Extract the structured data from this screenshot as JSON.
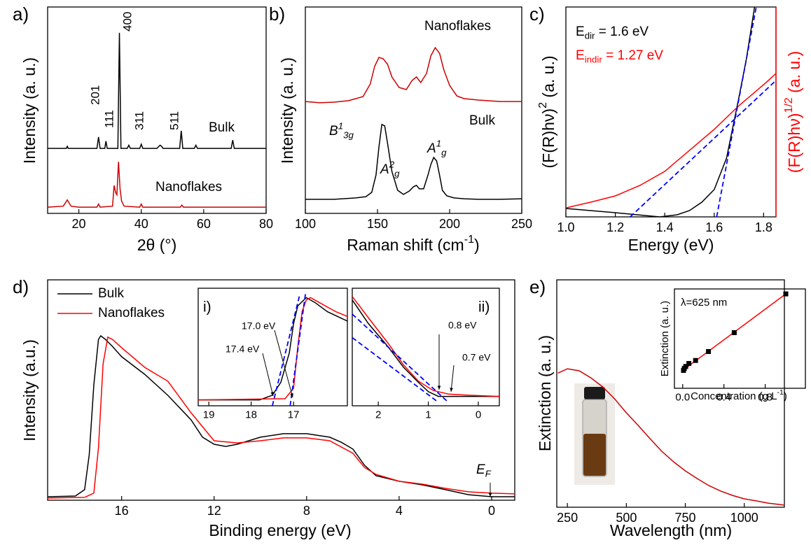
{
  "chart_data": [
    {
      "type": "line",
      "panel": "a)",
      "xlabel": "2θ (°)",
      "ylabel": "Intensity (a. u.)",
      "xlim": [
        10,
        80
      ],
      "ylim": [
        0,
        1
      ],
      "xticks": [
        20,
        40,
        60,
        80
      ],
      "series": [
        {
          "color": "#000000",
          "style": "line",
          "x": [
            10,
            16,
            16.3,
            16.6,
            20,
            25.8,
            26.3,
            26.8,
            28.3,
            28.7,
            29.1,
            32.5,
            33,
            33.5,
            35.5,
            36,
            36.5,
            39.5,
            40,
            40.5,
            45,
            46,
            46.5,
            47,
            52.3,
            52.8,
            53.3,
            57,
            57.5,
            58,
            68.8,
            69.3,
            69.8,
            80
          ],
          "values": [
            0.315,
            0.315,
            0.325,
            0.315,
            0.315,
            0.315,
            0.37,
            0.315,
            0.315,
            0.35,
            0.315,
            0.315,
            0.875,
            0.315,
            0.315,
            0.33,
            0.315,
            0.315,
            0.335,
            0.315,
            0.315,
            0.33,
            0.325,
            0.315,
            0.315,
            0.4,
            0.315,
            0.315,
            0.33,
            0.315,
            0.315,
            0.355,
            0.315,
            0.315
          ]
        },
        {
          "color": "#cc0000",
          "style": "line",
          "x": [
            10,
            15,
            16.3,
            17.5,
            20,
            25.8,
            26.3,
            26.8,
            30.8,
            31.3,
            31.8,
            32.2,
            32.7,
            33.2,
            33.7,
            34.5,
            39.5,
            40,
            40.5,
            45,
            52.5,
            53,
            53.5,
            80
          ],
          "values": [
            0.03,
            0.035,
            0.065,
            0.035,
            0.03,
            0.03,
            0.045,
            0.03,
            0.035,
            0.135,
            0.1,
            0.09,
            0.25,
            0.12,
            0.06,
            0.035,
            0.03,
            0.045,
            0.03,
            0.03,
            0.03,
            0.04,
            0.03,
            0.03
          ]
        }
      ],
      "annotations": [
        {
          "text": "201"
        },
        {
          "text": "111"
        },
        {
          "text": "400"
        },
        {
          "text": "311"
        },
        {
          "text": "511"
        },
        {
          "text": "Bulk"
        },
        {
          "text": "Nanoflakes",
          "color": "#cc0000"
        }
      ]
    },
    {
      "type": "line",
      "panel": "b)",
      "xlabel": [
        {
          "text": "Raman shift (cm"
        },
        {
          "text": "-1",
          "sup": true
        },
        {
          "text": ")"
        }
      ],
      "ylabel": "Intensity (a. u.)",
      "xlim": [
        100,
        250
      ],
      "ylim": [
        0,
        1
      ],
      "xticks": [
        100,
        150,
        200,
        250
      ],
      "series": [
        {
          "color": "#cc0000",
          "style": "line",
          "x": [
            100,
            110,
            120,
            130,
            140,
            145,
            148,
            151,
            154,
            157,
            160,
            165,
            170,
            174,
            177,
            180,
            184,
            187,
            190,
            193,
            196,
            200,
            205,
            210,
            220,
            235,
            250
          ],
          "values": [
            0.542,
            0.536,
            0.539,
            0.546,
            0.566,
            0.627,
            0.712,
            0.756,
            0.749,
            0.722,
            0.661,
            0.61,
            0.6,
            0.644,
            0.661,
            0.634,
            0.678,
            0.763,
            0.803,
            0.776,
            0.695,
            0.62,
            0.569,
            0.556,
            0.549,
            0.542,
            0.542
          ]
        },
        {
          "color": "#000000",
          "style": "line",
          "x": [
            100,
            120,
            135,
            142,
            146,
            149,
            151,
            153,
            155,
            157,
            160,
            164,
            168,
            172,
            175,
            177,
            179,
            182,
            185,
            187,
            189,
            191,
            193,
            195,
            198,
            203,
            210,
            220,
            235,
            250
          ],
          "values": [
            0.068,
            0.068,
            0.075,
            0.081,
            0.102,
            0.186,
            0.322,
            0.431,
            0.424,
            0.339,
            0.203,
            0.112,
            0.092,
            0.108,
            0.129,
            0.136,
            0.119,
            0.119,
            0.186,
            0.237,
            0.271,
            0.254,
            0.186,
            0.112,
            0.085,
            0.075,
            0.071,
            0.068,
            0.068,
            0.071
          ]
        }
      ],
      "annotations": [
        {
          "text": "Nanoflakes",
          "color": "#cc0000"
        },
        {
          "text": "Bulk"
        },
        {
          "text": [
            {
              "text": "B"
            },
            {
              "text": "1",
              "sup": true
            },
            {
              "text": "3g",
              "sub": true
            }
          ]
        },
        {
          "text": [
            {
              "text": "A"
            },
            {
              "text": "2",
              "sup": true
            },
            {
              "text": "g",
              "sub": true
            }
          ]
        },
        {
          "text": [
            {
              "text": "A"
            },
            {
              "text": "1",
              "sup": true
            },
            {
              "text": "g",
              "sub": true
            }
          ]
        }
      ]
    },
    {
      "type": "line",
      "panel": "c)",
      "xlabel": "Energy (eV)",
      "ylabel": [
        {
          "text": "(F(R)hν)"
        },
        {
          "text": "2",
          "sup": true
        },
        {
          "text": " (a. u.)"
        }
      ],
      "y2label": [
        {
          "text": "(F(R)hν)"
        },
        {
          "text": "1/2",
          "sup": true
        },
        {
          "text": " (a. u.)"
        }
      ],
      "xlim": [
        1.0,
        1.85
      ],
      "ylim": [
        0,
        1
      ],
      "y2lim": [
        0,
        1
      ],
      "xticks": [
        {
          "value": 1.0,
          "label": "1.0"
        },
        1.2,
        1.4,
        1.6,
        {
          "value": 1.8,
          "label": "1.8"
        }
      ],
      "series": [
        {
          "color": "#000000",
          "style": "line",
          "x": [
            1.0,
            1.2,
            1.38,
            1.45,
            1.5,
            1.55,
            1.6,
            1.65,
            1.7,
            1.73,
            1.75,
            1.77
          ],
          "values": [
            0.04,
            0.02,
            0,
            0.01,
            0.03,
            0.07,
            0.13,
            0.28,
            0.57,
            0.75,
            0.9,
            1.05
          ]
        },
        {
          "color": "#ff0000",
          "style": "line",
          "axis": "y2",
          "x": [
            1.0,
            1.1,
            1.2,
            1.3,
            1.4,
            1.5,
            1.6,
            1.7,
            1.8,
            1.85
          ],
          "values": [
            0.043,
            0.07,
            0.1,
            0.15,
            0.217,
            0.317,
            0.417,
            0.53,
            0.63,
            0.683
          ]
        },
        {
          "color": "#0000ff",
          "style": "dashed",
          "x": [
            1.61,
            1.77
          ],
          "values": [
            0,
            1
          ]
        },
        {
          "color": "#0000ff",
          "style": "dashed",
          "axis": "y2",
          "x": [
            1.26,
            1.85
          ],
          "values": [
            0,
            0.65
          ]
        }
      ],
      "annotations": [
        {
          "text": [
            {
              "text": "E"
            },
            {
              "text": "dir",
              "sub": true
            },
            {
              "text": " = 1.6 eV"
            }
          ]
        },
        {
          "text": [
            {
              "text": "E"
            },
            {
              "text": "indir",
              "sub": true
            },
            {
              "text": " = 1.27 eV"
            }
          ],
          "color": "#ff0000"
        }
      ]
    },
    {
      "type": "line",
      "panel": "d)",
      "xlabel": "Binding energy (eV)",
      "ylabel": "Intensity (a.u.)",
      "xlim": [
        19.2,
        -1
      ],
      "ylim": [
        0,
        1
      ],
      "xticks": [
        16,
        12,
        8,
        4,
        0
      ],
      "legend": "upper left",
      "series": [
        {
          "name": "Bulk",
          "color": "#000000",
          "style": "line",
          "x": [
            19.2,
            18,
            17.6,
            17.4,
            17.2,
            17.0,
            16.9,
            16.7,
            16.4,
            16,
            15,
            14,
            13,
            12.5,
            12,
            11.5,
            11,
            10,
            9,
            8,
            7,
            6.5,
            6,
            5.5,
            5,
            4,
            3,
            2,
            1,
            0,
            -1
          ],
          "values": [
            0.016,
            0.019,
            0.048,
            0.206,
            0.524,
            0.73,
            0.746,
            0.73,
            0.698,
            0.651,
            0.571,
            0.476,
            0.365,
            0.286,
            0.254,
            0.244,
            0.254,
            0.286,
            0.302,
            0.302,
            0.286,
            0.263,
            0.232,
            0.159,
            0.111,
            0.086,
            0.07,
            0.048,
            0.025,
            0.016,
            0.016
          ]
        },
        {
          "name": "Nanoflakes",
          "color": "#ff0000",
          "style": "line",
          "x": [
            19.2,
            17.6,
            17.2,
            17.0,
            16.8,
            16.6,
            16.4,
            16,
            15,
            14,
            13,
            12,
            11,
            10,
            9,
            8,
            7,
            6,
            5.5,
            5,
            4,
            3,
            2,
            1,
            0,
            -1
          ],
          "values": [
            0.01,
            0.013,
            0.032,
            0.238,
            0.619,
            0.74,
            0.73,
            0.692,
            0.603,
            0.54,
            0.397,
            0.27,
            0.26,
            0.27,
            0.283,
            0.283,
            0.27,
            0.213,
            0.149,
            0.117,
            0.086,
            0.073,
            0.054,
            0.038,
            0.032,
            0.029
          ]
        }
      ],
      "annotations": [
        {
          "text": [
            {
              "text": "E"
            },
            {
              "text": "F",
              "sub": true
            }
          ]
        }
      ]
    },
    {
      "type": "line",
      "panel": "i)",
      "xlim": [
        19.25,
        15.73
      ],
      "ylim": [
        0,
        1
      ],
      "xticks": [
        19,
        18,
        17
      ],
      "series": [
        {
          "color": "#000000",
          "style": "line",
          "x": [
            19.25,
            17.8,
            17.5,
            17.3,
            17.1,
            17.0,
            16.9,
            16.7,
            16.5,
            16.2,
            15.73
          ],
          "values": [
            0.05,
            0.05,
            0.09,
            0.2,
            0.45,
            0.7,
            0.85,
            0.92,
            0.88,
            0.8,
            0.72
          ]
        },
        {
          "color": "#ff0000",
          "style": "line",
          "x": [
            19.25,
            17.2,
            17.0,
            16.9,
            16.8,
            16.7,
            16.6,
            16.4,
            16.0,
            15.73
          ],
          "values": [
            0.05,
            0.06,
            0.15,
            0.5,
            0.8,
            0.9,
            0.92,
            0.88,
            0.8,
            0.76
          ]
        },
        {
          "color": "#0000ff",
          "style": "dashed",
          "x": [
            17.5,
            16.85
          ],
          "values": [
            0.0,
            0.95
          ]
        },
        {
          "color": "#0000ff",
          "style": "dashed",
          "x": [
            17.08,
            16.72
          ],
          "values": [
            0.0,
            0.95
          ]
        }
      ],
      "annotations": [
        {
          "text": "17.0 eV",
          "color": "#ff0000"
        },
        {
          "text": "17.4 eV"
        }
      ]
    },
    {
      "type": "line",
      "panel": "ii)",
      "xlim": [
        2.52,
        -0.42
      ],
      "ylim": [
        0,
        1
      ],
      "xticks": [
        2,
        1,
        0
      ],
      "series": [
        {
          "color": "#000000",
          "style": "line",
          "x": [
            2.52,
            2.2,
            1.8,
            1.5,
            1.2,
            1.0,
            0.8,
            0.6,
            -0.42
          ],
          "values": [
            0.9,
            0.7,
            0.5,
            0.33,
            0.2,
            0.12,
            0.08,
            0.08,
            0.08
          ]
        },
        {
          "color": "#ff0000",
          "style": "line",
          "x": [
            2.52,
            2.2,
            1.8,
            1.5,
            1.2,
            0.9,
            0.6,
            0.2,
            -0.42
          ],
          "values": [
            0.93,
            0.75,
            0.53,
            0.35,
            0.21,
            0.13,
            0.1,
            0.09,
            0.08
          ]
        },
        {
          "color": "#0000ff",
          "style": "dashed",
          "x": [
            2.52,
            0.6
          ],
          "values": [
            0.78,
            0.03
          ]
        },
        {
          "color": "#0000ff",
          "style": "dashed",
          "x": [
            2.52,
            0.8
          ],
          "values": [
            0.58,
            0.03
          ]
        }
      ],
      "annotations": [
        {
          "text": "0.8 eV"
        },
        {
          "text": "0.7 eV",
          "color": "#ff0000"
        }
      ]
    },
    {
      "type": "line",
      "panel": "e)",
      "xlabel": "Wavelength (nm)",
      "ylabel": "Extinction (a. u.)",
      "xlim": [
        205,
        1170
      ],
      "ylim": [
        0,
        1
      ],
      "xticks": [
        250,
        500,
        750,
        1000
      ],
      "series": [
        {
          "color": "#cc0000",
          "style": "line",
          "x": [
            210,
            250,
            300,
            350,
            400,
            450,
            500,
            550,
            600,
            650,
            700,
            750,
            800,
            850,
            900,
            950,
            1000,
            1050,
            1100,
            1150,
            1170
          ],
          "values": [
            0.59,
            0.609,
            0.6,
            0.569,
            0.529,
            0.477,
            0.415,
            0.36,
            0.302,
            0.246,
            0.2,
            0.16,
            0.126,
            0.095,
            0.071,
            0.052,
            0.037,
            0.028,
            0.018,
            0.012,
            0.009
          ]
        }
      ]
    },
    {
      "type": "scatter",
      "xlabel": [
        {
          "text": "Concentration (g L"
        },
        {
          "text": "-1",
          "sup": true
        },
        {
          "text": ")"
        }
      ],
      "ylabel": "Extinction (a. u.)",
      "xlim": [
        -0.08,
        1.19
      ],
      "ylim": [
        0,
        1
      ],
      "xticks": [
        {
          "value": 0.0,
          "label": "0.0"
        },
        0.4,
        0.8
      ],
      "series": [
        {
          "color": "#ff0000",
          "style": "line",
          "x": [
            0,
            1.0
          ],
          "values": [
            0.18,
            0.95
          ]
        },
        {
          "color": "#000000",
          "style": "markers",
          "x": [
            0.008,
            0.016,
            0.03,
            0.06,
            0.125,
            0.25,
            0.5,
            1.0
          ],
          "values": [
            0.18,
            0.2,
            0.22,
            0.25,
            0.28,
            0.37,
            0.56,
            0.95
          ]
        }
      ],
      "annotations": [
        {
          "text": "λ=625 nm"
        }
      ]
    }
  ]
}
